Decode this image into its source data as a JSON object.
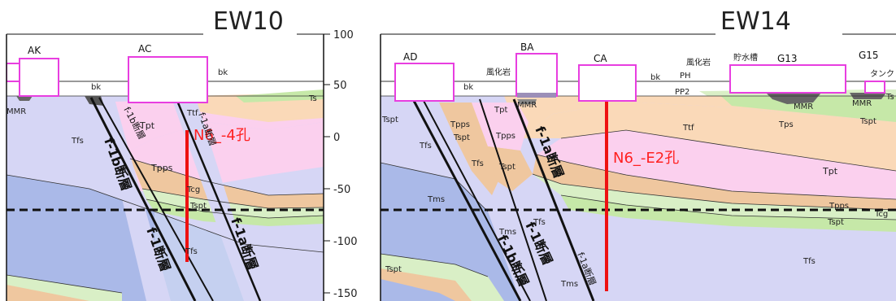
{
  "sections": {
    "left_title": "EW10",
    "right_title": "EW14"
  },
  "axis": {
    "ticks": [
      "100",
      "50",
      "0",
      "-50",
      "-100",
      "-150"
    ]
  },
  "left": {
    "facilities": [
      "AK",
      "AC"
    ],
    "boreholes": [
      "N6_-4孔"
    ],
    "faults": [
      "f-1b断層",
      "f-1断層",
      "f-1a断層",
      "f-1b断層",
      "f-1a断層"
    ],
    "labels": {
      "bk1": "bk",
      "bk2": "bk",
      "mmr": "MMR",
      "ts": "Ts",
      "ttf": "Ttf",
      "tpt": "Tpt",
      "tfs1": "Tfs",
      "tpps": "Tpps",
      "tcg": "Tcg",
      "tspt": "Tspt",
      "tfs2": "Tfs"
    }
  },
  "right": {
    "facilities": [
      "AD",
      "BA",
      "CA",
      "G13",
      "G15"
    ],
    "boreholes": [
      "N6_-E2孔"
    ],
    "faults": [
      "f-1b断層",
      "f-1断層",
      "f-1a断層",
      "f-1a断層"
    ],
    "labels": {
      "bk1": "bk",
      "bk2": "bk",
      "weathered1": "風化岩",
      "weathered2": "風化岩",
      "ph": "PH",
      "pp2": "PP2",
      "water_tank": "貯水槽",
      "tank": "タンク",
      "mmr1": "MMR",
      "mmr2": "MMR",
      "mmr3": "MMR",
      "ts": "Ts",
      "tspt1": "Tspt",
      "tpps1": "Tpps",
      "tspt2": "Tspt",
      "tfs1": "Tfs",
      "tpt1": "Tpt",
      "tpps2": "Tpps",
      "tfs2": "Tfs",
      "tspt3": "Tspt",
      "ttf": "Ttf",
      "tps": "Tps",
      "tspt4": "Tspt",
      "tpt2": "Tpt",
      "tpps3": "Tpps",
      "tcg": "Tcg",
      "tspt5": "Tspt",
      "tms1": "Tms",
      "tfs3": "Tfs",
      "tms2": "Tms",
      "tms3": "Tms",
      "tfs4": "Tfs",
      "tspt6": "Tspt"
    }
  },
  "colors": {
    "border_ttf": "#fad9b8",
    "tpt": "#fbd0ee",
    "tpps": "#efc79f",
    "tspt": "#d9efc6",
    "tfs": "#d6d6f5",
    "tms": "#aab9e8",
    "ts": "#c6e8a8",
    "facility": "#e83ee0",
    "borehole": "#ee1111",
    "fault": "#111111"
  }
}
